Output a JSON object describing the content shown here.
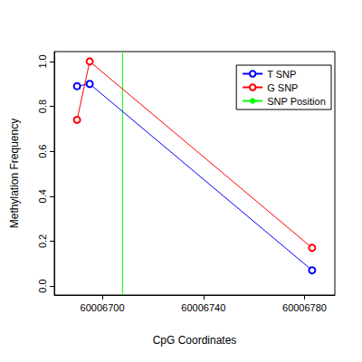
{
  "chart_data": {
    "type": "line",
    "x_label": "CpG Coordinates",
    "y_label": "Methylation Frequency",
    "series": [
      {
        "name": "T SNP",
        "color": "#0000ff",
        "marker": "circle_open",
        "x": [
          60006690,
          60006695,
          60006783
        ],
        "values": [
          0.89,
          0.9,
          0.07
        ]
      },
      {
        "name": "G SNP",
        "color": "#ff0000",
        "marker": "circle_open",
        "x": [
          60006690,
          60006695,
          60006783
        ],
        "values": [
          0.74,
          1.0,
          0.17
        ]
      },
      {
        "name": "SNP Position",
        "color": "#00ff00",
        "type": "vline",
        "x": [
          60006708
        ]
      }
    ],
    "xlim": [
      60006681,
      60006792
    ],
    "xticks": [
      60006700,
      60006740,
      60006780
    ],
    "ylim": [
      -0.04,
      1.044
    ],
    "yticks": [
      {
        "value": 0,
        "label": "0.0"
      },
      {
        "value": 0.2,
        "label": "0.2"
      },
      {
        "value": 0.4,
        "label": "0.4"
      },
      {
        "value": 0.6,
        "label": "0.6"
      },
      {
        "value": 0.8,
        "label": "0.8"
      },
      {
        "value": 1,
        "label": "1.0"
      }
    ],
    "legend": "upper right",
    "grid": false
  }
}
